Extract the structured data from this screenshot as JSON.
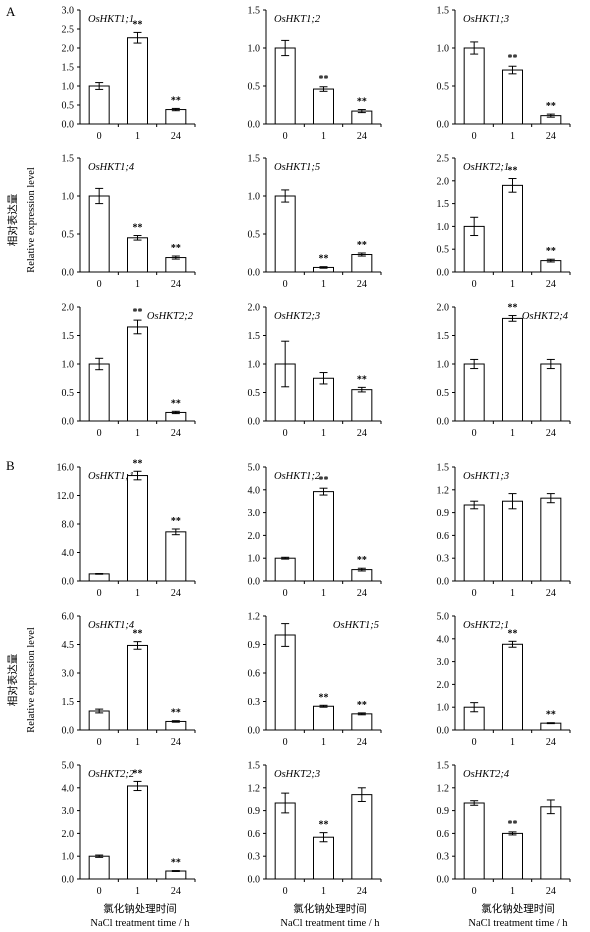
{
  "panels": {
    "A": {
      "label": "A"
    },
    "B": {
      "label": "B"
    }
  },
  "ylabel_cn": "相对表达量",
  "ylabel_en": "Relative expression level",
  "xlabel_cn": "氯化钠处理时间",
  "xlabel_en": "NaCl treatment time / h",
  "bar_color": "#ffffff",
  "stroke_color": "#000000",
  "chart_data": [
    {
      "panel": "A",
      "type": "bar",
      "title": "OsHKT1;1",
      "categories": [
        "0",
        "1",
        "24"
      ],
      "values": [
        1.0,
        2.27,
        0.38
      ],
      "errors": [
        0.09,
        0.14,
        0.03
      ],
      "sig": [
        "",
        "**",
        "**"
      ],
      "ylim": [
        0,
        3
      ],
      "yticks": [
        "0.0",
        "0.5",
        "1.0",
        "1.5",
        "2.0",
        "2.5",
        "3.0"
      ]
    },
    {
      "panel": "A",
      "type": "bar",
      "title": "OsHKT1;2",
      "categories": [
        "0",
        "1",
        "24"
      ],
      "values": [
        1.0,
        0.46,
        0.17
      ],
      "errors": [
        0.1,
        0.03,
        0.02
      ],
      "sig": [
        "",
        "**",
        "**"
      ],
      "ylim": [
        0,
        1.5
      ],
      "yticks": [
        "0.0",
        "0.5",
        "1.0",
        "1.5"
      ]
    },
    {
      "panel": "A",
      "type": "bar",
      "title": "OsHKT1;3",
      "categories": [
        "0",
        "1",
        "24"
      ],
      "values": [
        1.0,
        0.71,
        0.11
      ],
      "errors": [
        0.08,
        0.05,
        0.02
      ],
      "sig": [
        "",
        "**",
        "**"
      ],
      "ylim": [
        0,
        1.5
      ],
      "yticks": [
        "0.0",
        "0.5",
        "1.0",
        "1.5"
      ]
    },
    {
      "panel": "A",
      "type": "bar",
      "title": "OsHKT1;4",
      "categories": [
        "0",
        "1",
        "24"
      ],
      "values": [
        1.0,
        0.45,
        0.19
      ],
      "errors": [
        0.1,
        0.03,
        0.02
      ],
      "sig": [
        "",
        "**",
        "**"
      ],
      "ylim": [
        0,
        1.5
      ],
      "yticks": [
        "0.0",
        "0.5",
        "1.0",
        "1.5"
      ]
    },
    {
      "panel": "A",
      "type": "bar",
      "title": "OsHKT1;5",
      "categories": [
        "0",
        "1",
        "24"
      ],
      "values": [
        1.0,
        0.06,
        0.23
      ],
      "errors": [
        0.08,
        0.01,
        0.02
      ],
      "sig": [
        "",
        "**",
        "**"
      ],
      "ylim": [
        0,
        1.5
      ],
      "yticks": [
        "0.0",
        "0.5",
        "1.0",
        "1.5"
      ]
    },
    {
      "panel": "A",
      "type": "bar",
      "title": "OsHKT2;1",
      "categories": [
        "0",
        "1",
        "24"
      ],
      "values": [
        1.0,
        1.9,
        0.25
      ],
      "errors": [
        0.2,
        0.15,
        0.03
      ],
      "sig": [
        "",
        "**",
        "**"
      ],
      "ylim": [
        0,
        2.5
      ],
      "yticks": [
        "0.0",
        "0.5",
        "1.0",
        "1.5",
        "2.0",
        "2.5"
      ]
    },
    {
      "panel": "A",
      "type": "bar",
      "title": "OsHKT2;2",
      "categories": [
        "0",
        "1",
        "24"
      ],
      "values": [
        1.0,
        1.65,
        0.15
      ],
      "errors": [
        0.1,
        0.12,
        0.02
      ],
      "sig": [
        "",
        "**",
        "**"
      ],
      "ylim": [
        0,
        2
      ],
      "yticks": [
        "0.0",
        "0.5",
        "1.0",
        "1.5",
        "2.0"
      ]
    },
    {
      "panel": "A",
      "type": "bar",
      "title": "OsHKT2;3",
      "categories": [
        "0",
        "1",
        "24"
      ],
      "values": [
        1.0,
        0.75,
        0.55
      ],
      "errors": [
        0.4,
        0.1,
        0.04
      ],
      "sig": [
        "",
        "",
        "**"
      ],
      "ylim": [
        0,
        2
      ],
      "yticks": [
        "0.0",
        "0.5",
        "1.0",
        "1.5",
        "2.0"
      ]
    },
    {
      "panel": "A",
      "type": "bar",
      "title": "OsHKT2;4",
      "categories": [
        "0",
        "1",
        "24"
      ],
      "values": [
        1.0,
        1.8,
        1.0
      ],
      "errors": [
        0.08,
        0.05,
        0.08
      ],
      "sig": [
        "",
        "**",
        ""
      ],
      "ylim": [
        0,
        2
      ],
      "yticks": [
        "0.0",
        "0.5",
        "1.0",
        "1.5",
        "2.0"
      ]
    },
    {
      "panel": "B",
      "type": "bar",
      "title": "OsHKT1;1",
      "categories": [
        "0",
        "1",
        "24"
      ],
      "values": [
        1.0,
        14.8,
        6.9
      ],
      "errors": [
        0.05,
        0.6,
        0.4
      ],
      "sig": [
        "",
        "**",
        "**"
      ],
      "ylim": [
        0,
        16
      ],
      "yticks": [
        "0.0",
        "4.0",
        "8.0",
        "12.0",
        "16.0"
      ]
    },
    {
      "panel": "B",
      "type": "bar",
      "title": "OsHKT1;2",
      "categories": [
        "0",
        "1",
        "24"
      ],
      "values": [
        1.0,
        3.92,
        0.5
      ],
      "errors": [
        0.04,
        0.15,
        0.06
      ],
      "sig": [
        "",
        "**",
        "**"
      ],
      "ylim": [
        0,
        5
      ],
      "yticks": [
        "0.0",
        "1.0",
        "2.0",
        "3.0",
        "4.0",
        "5.0"
      ]
    },
    {
      "panel": "B",
      "type": "bar",
      "title": "OsHKT1;3",
      "categories": [
        "0",
        "1",
        "24"
      ],
      "values": [
        1.0,
        1.05,
        1.09
      ],
      "errors": [
        0.05,
        0.1,
        0.06
      ],
      "sig": [
        "",
        "",
        ""
      ],
      "ylim": [
        0,
        1.5
      ],
      "yticks": [
        "0.0",
        "0.3",
        "0.6",
        "0.9",
        "1.2",
        "1.5"
      ]
    },
    {
      "panel": "B",
      "type": "bar",
      "title": "OsHKT1;4",
      "categories": [
        "0",
        "1",
        "24"
      ],
      "values": [
        1.0,
        4.45,
        0.45
      ],
      "errors": [
        0.1,
        0.2,
        0.04
      ],
      "sig": [
        "",
        "**",
        "**"
      ],
      "ylim": [
        0,
        6
      ],
      "yticks": [
        "0.0",
        "1.5",
        "3.0",
        "4.5",
        "6.0"
      ]
    },
    {
      "panel": "B",
      "type": "bar",
      "title": "OsHKT1;5",
      "categories": [
        "0",
        "1",
        "24"
      ],
      "values": [
        1.0,
        0.25,
        0.17
      ],
      "errors": [
        0.12,
        0.01,
        0.01
      ],
      "sig": [
        "",
        "**",
        "**"
      ],
      "ylim": [
        0,
        1.2
      ],
      "yticks": [
        "0.0",
        "0.3",
        "0.6",
        "0.9",
        "1.2"
      ]
    },
    {
      "panel": "B",
      "type": "bar",
      "title": "OsHKT2;1",
      "categories": [
        "0",
        "1",
        "24"
      ],
      "values": [
        1.0,
        3.76,
        0.3
      ],
      "errors": [
        0.2,
        0.13,
        0.02
      ],
      "sig": [
        "",
        "**",
        "**"
      ],
      "ylim": [
        0,
        5
      ],
      "yticks": [
        "0.0",
        "1.0",
        "2.0",
        "3.0",
        "4.0",
        "5.0"
      ]
    },
    {
      "panel": "B",
      "type": "bar",
      "title": "OsHKT2;2",
      "categories": [
        "0",
        "1",
        "24"
      ],
      "values": [
        1.0,
        4.08,
        0.35
      ],
      "errors": [
        0.05,
        0.2,
        0.02
      ],
      "sig": [
        "",
        "**",
        "**"
      ],
      "ylim": [
        0,
        5
      ],
      "yticks": [
        "0.0",
        "1.0",
        "2.0",
        "3.0",
        "4.0",
        "5.0"
      ]
    },
    {
      "panel": "B",
      "type": "bar",
      "title": "OsHKT2;3",
      "categories": [
        "0",
        "1",
        "24"
      ],
      "values": [
        1.0,
        0.55,
        1.11
      ],
      "errors": [
        0.13,
        0.06,
        0.09
      ],
      "sig": [
        "",
        "**",
        ""
      ],
      "ylim": [
        0,
        1.5
      ],
      "yticks": [
        "0.0",
        "0.3",
        "0.6",
        "0.9",
        "1.2",
        "1.5"
      ]
    },
    {
      "panel": "B",
      "type": "bar",
      "title": "OsHKT2;4",
      "categories": [
        "0",
        "1",
        "24"
      ],
      "values": [
        1.0,
        0.6,
        0.95
      ],
      "errors": [
        0.03,
        0.02,
        0.09
      ],
      "sig": [
        "",
        "**",
        ""
      ],
      "ylim": [
        0,
        1.5
      ],
      "yticks": [
        "0.0",
        "0.3",
        "0.6",
        "0.9",
        "1.2",
        "1.5"
      ]
    }
  ]
}
